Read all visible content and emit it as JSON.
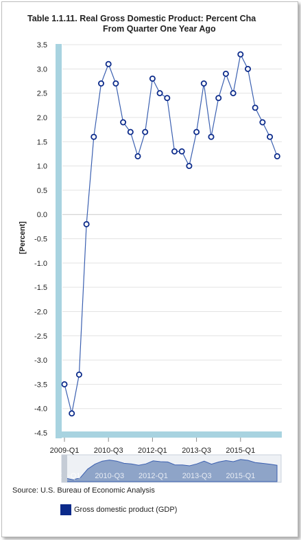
{
  "title": {
    "line1": "Table 1.1.11. Real Gross Domestic Product: Percent Cha",
    "line2": "From Quarter One Year Ago"
  },
  "source": "Source: U.S. Bureau of Economic Analysis",
  "colors": {
    "series": "#0b2a8a",
    "line": "#3a5fb0",
    "axis_band": "#a8d3e0",
    "grid": "#e3e3e3",
    "navigator_fill": "#8ea4c8"
  },
  "chart_data": {
    "type": "line",
    "ylabel": "[Percent]",
    "ylim": [
      -4.5,
      3.5
    ],
    "yticks": [
      "3.5",
      "3.0",
      "2.5",
      "2.0",
      "1.5",
      "1.0",
      "0.5",
      "0.0",
      "-0.5",
      "-1.0",
      "-1.5",
      "-2.0",
      "-2.5",
      "-3.0",
      "-3.5",
      "-4.0",
      "-4.5"
    ],
    "xtick_labels": [
      "2009-Q1",
      "2010-Q3",
      "2012-Q1",
      "2013-Q3",
      "2015-Q1"
    ],
    "navigator_labels": [
      "2009-Q1",
      "2010-Q3",
      "2012-Q1",
      "2013-Q3",
      "2015-Q1"
    ],
    "grid": true,
    "legend_position": "bottom-left",
    "series": [
      {
        "name": "Gross domestic product (GDP)",
        "x": [
          "2009-Q1",
          "2009-Q2",
          "2009-Q3",
          "2009-Q4",
          "2010-Q1",
          "2010-Q2",
          "2010-Q3",
          "2010-Q4",
          "2011-Q1",
          "2011-Q2",
          "2011-Q3",
          "2011-Q4",
          "2012-Q1",
          "2012-Q2",
          "2012-Q3",
          "2012-Q4",
          "2013-Q1",
          "2013-Q2",
          "2013-Q3",
          "2013-Q4",
          "2014-Q1",
          "2014-Q2",
          "2014-Q3",
          "2014-Q4",
          "2015-Q1",
          "2015-Q2",
          "2015-Q3",
          "2015-Q4",
          "2016-Q1",
          "2016-Q2"
        ],
        "values": [
          -3.5,
          -4.1,
          -3.3,
          -0.2,
          1.6,
          2.7,
          3.1,
          2.7,
          1.9,
          1.7,
          1.2,
          1.7,
          2.8,
          2.5,
          2.4,
          1.3,
          1.3,
          1.0,
          1.7,
          2.7,
          1.6,
          2.4,
          2.9,
          2.5,
          3.3,
          3.0,
          2.2,
          1.9,
          1.6,
          1.2
        ]
      }
    ]
  }
}
